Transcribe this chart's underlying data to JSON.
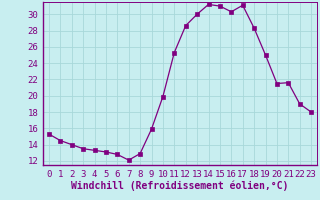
{
  "x": [
    0,
    1,
    2,
    3,
    4,
    5,
    6,
    7,
    8,
    9,
    10,
    11,
    12,
    13,
    14,
    15,
    16,
    17,
    18,
    19,
    20,
    21,
    22,
    23
  ],
  "y": [
    15.3,
    14.5,
    14.0,
    13.5,
    13.3,
    13.1,
    12.8,
    12.1,
    12.9,
    15.9,
    19.9,
    25.3,
    28.6,
    30.0,
    31.2,
    31.0,
    30.3,
    31.1,
    28.3,
    25.0,
    21.5,
    21.6,
    19.0,
    18.0
  ],
  "line_color": "#800080",
  "marker_color": "#800080",
  "bg_color": "#C8EEF0",
  "grid_color": "#A8D8DA",
  "xlabel": "Windchill (Refroidissement éolien,°C)",
  "xlim": [
    -0.5,
    23.5
  ],
  "ylim": [
    11.5,
    31.5
  ],
  "yticks": [
    12,
    14,
    16,
    18,
    20,
    22,
    24,
    26,
    28,
    30
  ],
  "xticks": [
    0,
    1,
    2,
    3,
    4,
    5,
    6,
    7,
    8,
    9,
    10,
    11,
    12,
    13,
    14,
    15,
    16,
    17,
    18,
    19,
    20,
    21,
    22,
    23
  ],
  "tick_color": "#800080",
  "font_size_ticks": 6.5,
  "font_size_xlabel": 7.0,
  "line_width": 0.9,
  "marker_size": 2.2
}
